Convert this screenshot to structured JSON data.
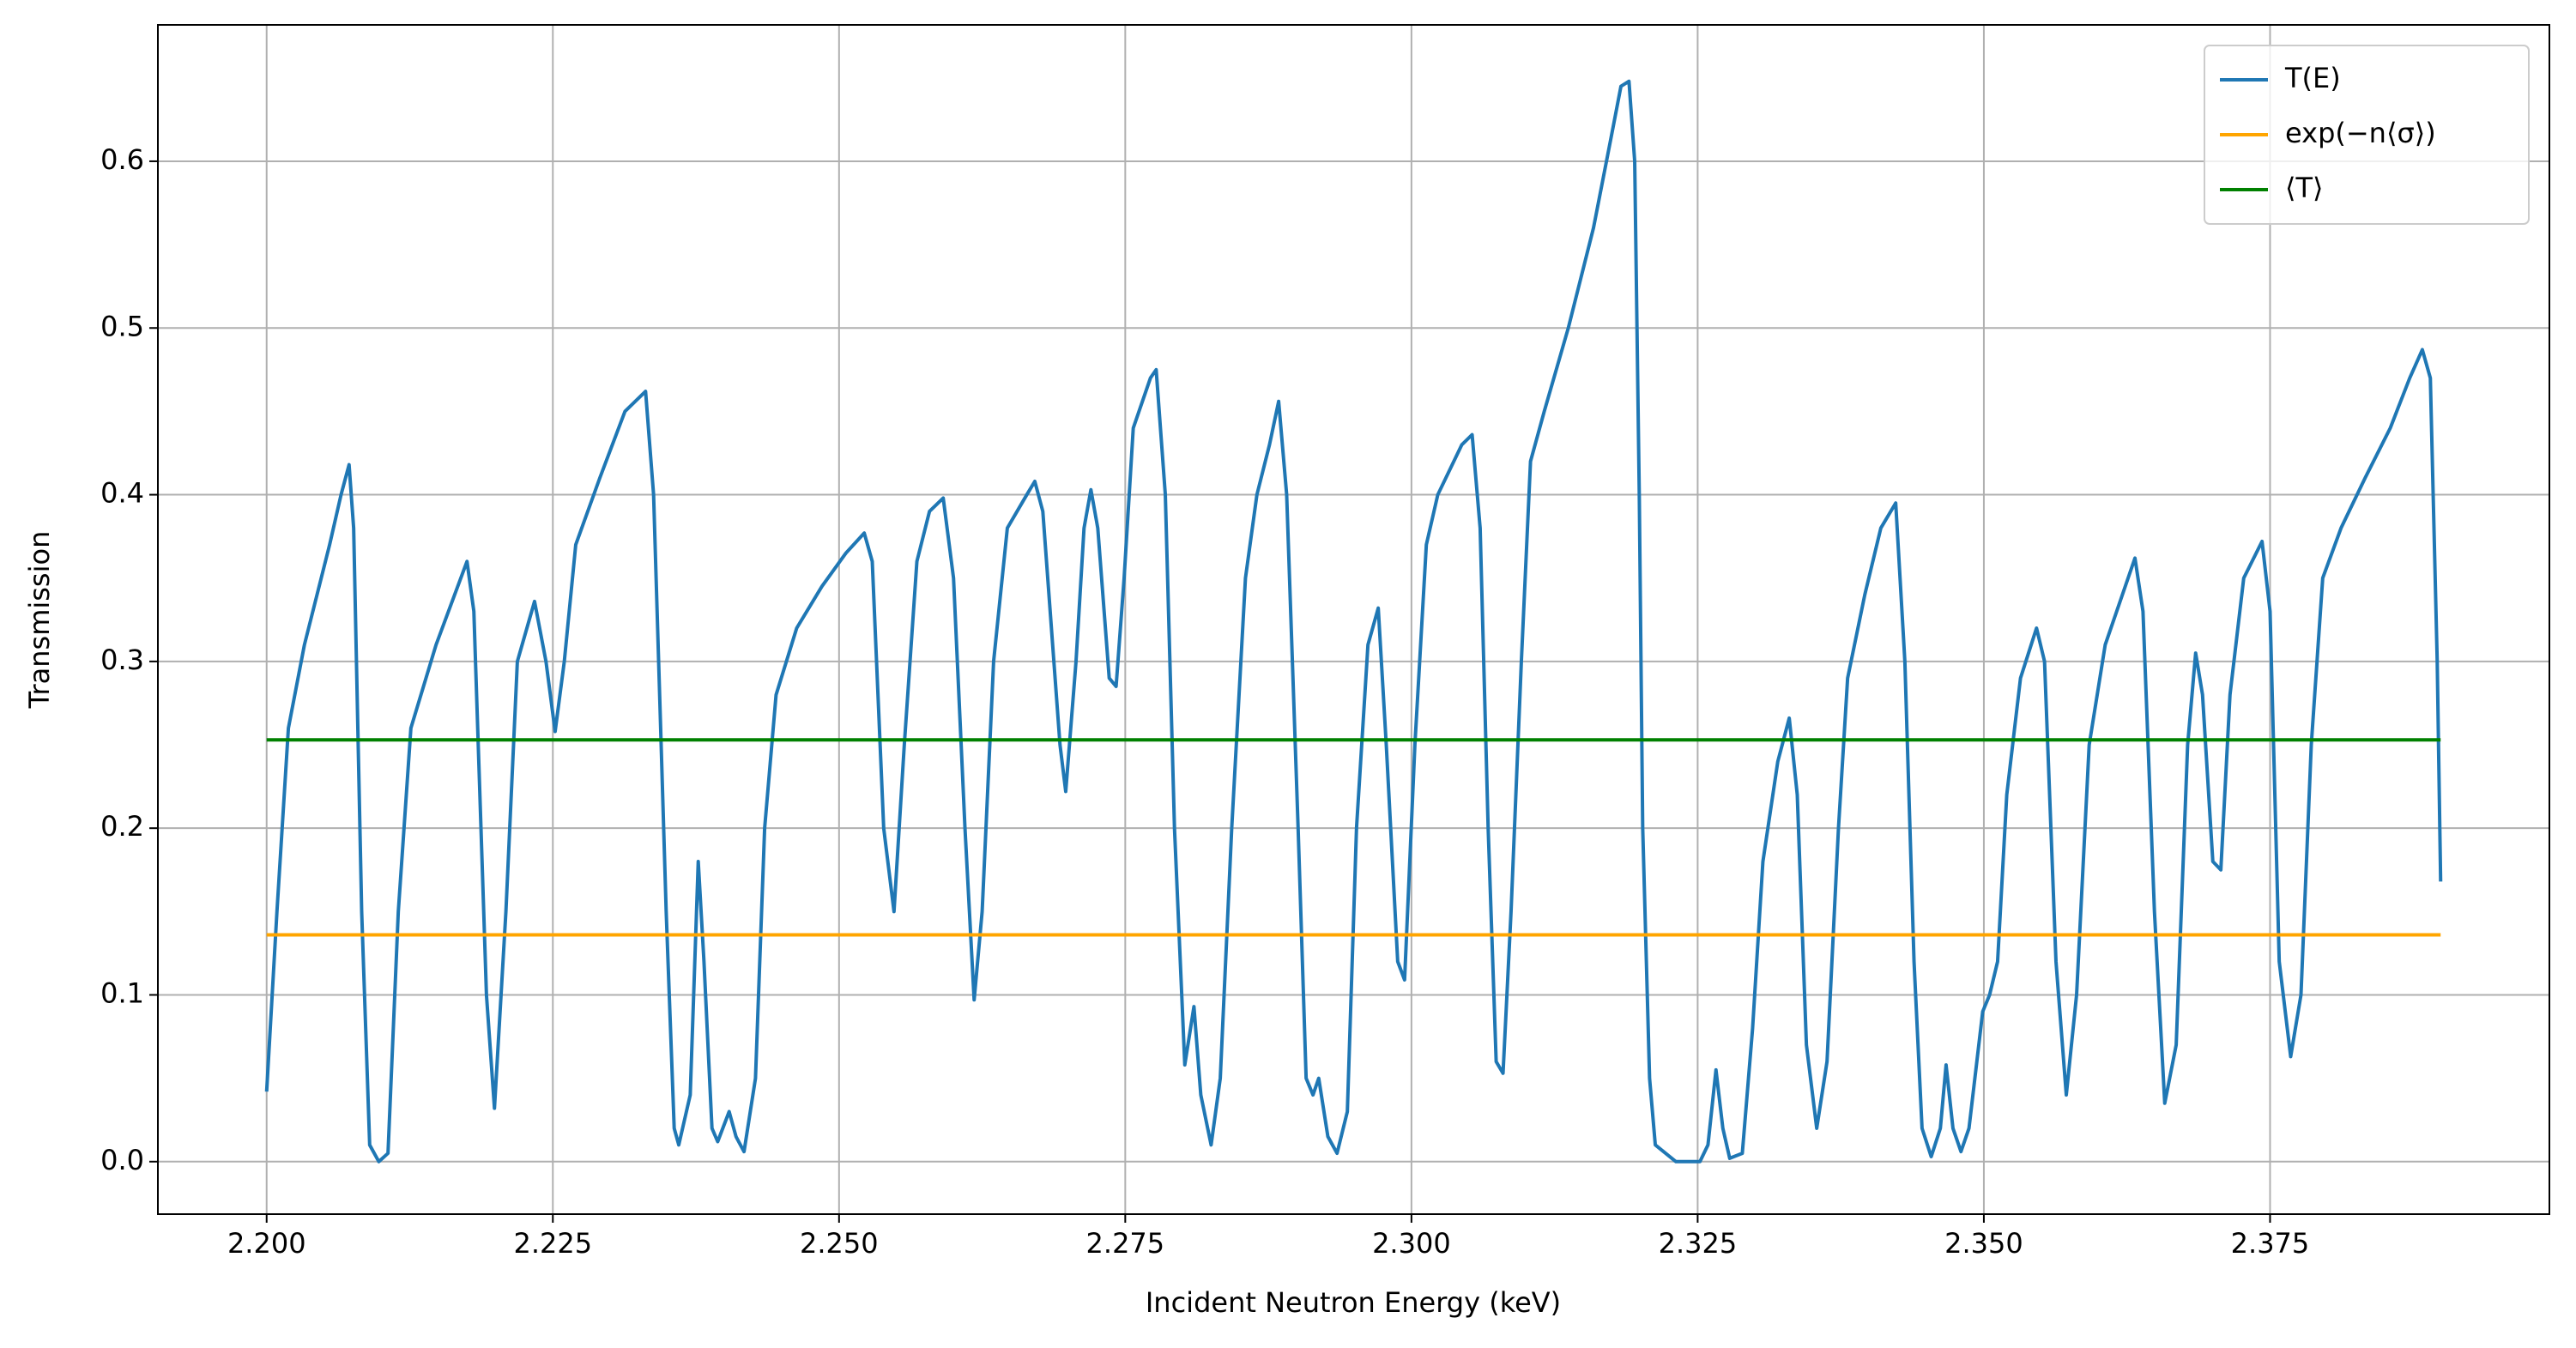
{
  "chart_data": {
    "type": "line",
    "xlabel": "Incident Neutron Energy (keV)",
    "ylabel": "Transmission",
    "xlim": [
      2.1905,
      2.3994
    ],
    "ylim": [
      -0.0315,
      0.6818
    ],
    "xticks": [
      {
        "value": 2.2,
        "label": "2.200"
      },
      {
        "value": 2.225,
        "label": "2.225"
      },
      {
        "value": 2.25,
        "label": "2.250"
      },
      {
        "value": 2.275,
        "label": "2.275"
      },
      {
        "value": 2.3,
        "label": "2.300"
      },
      {
        "value": 2.325,
        "label": "2.325"
      },
      {
        "value": 2.35,
        "label": "2.350"
      },
      {
        "value": 2.375,
        "label": "2.375"
      }
    ],
    "yticks": [
      {
        "value": 0,
        "label": "0.0"
      },
      0.1,
      0.2,
      0.3,
      0.4,
      0.5,
      0.6
    ],
    "grid": true,
    "legend": "upper right",
    "series": [
      {
        "name": "T(E)",
        "color": "#1f77b4",
        "x": [
          2.2,
          2.2009,
          2.2019,
          2.2033,
          2.2055,
          2.2065,
          2.2072,
          2.2076,
          2.2083,
          2.209,
          2.2098,
          2.2106,
          2.2115,
          2.2126,
          2.2148,
          2.2175,
          2.2181,
          2.2192,
          2.2199,
          2.2209,
          2.2219,
          2.2234,
          2.2244,
          2.2252,
          2.226,
          2.227,
          2.2291,
          2.2313,
          2.2331,
          2.2338,
          2.2349,
          2.2356,
          2.236,
          2.237,
          2.2377,
          2.2382,
          2.2389,
          2.2394,
          2.2404,
          2.241,
          2.2417,
          2.2427,
          2.2435,
          2.2445,
          2.2463,
          2.2485,
          2.2506,
          2.2522,
          2.2529,
          2.2539,
          2.2548,
          2.2557,
          2.2568,
          2.2579,
          2.2591,
          2.26,
          2.261,
          2.2618,
          2.2625,
          2.2635,
          2.2647,
          2.2664,
          2.2671,
          2.2678,
          2.2693,
          2.2698,
          2.2707,
          2.2714,
          2.272,
          2.2726,
          2.2736,
          2.2742,
          2.2749,
          2.2757,
          2.2772,
          2.2777,
          2.2785,
          2.2793,
          2.2802,
          2.281,
          2.2816,
          2.2825,
          2.2833,
          2.2843,
          2.2855,
          2.2865,
          2.2876,
          2.2884,
          2.2891,
          2.2901,
          2.2908,
          2.2914,
          2.2919,
          2.2927,
          2.2935,
          2.2944,
          2.2952,
          2.2962,
          2.2971,
          2.2978,
          2.2988,
          2.2994,
          2.3003,
          2.3013,
          2.3023,
          2.3044,
          2.3053,
          2.306,
          2.3067,
          2.3074,
          2.308,
          2.3087,
          2.3096,
          2.3104,
          2.3116,
          2.3137,
          2.3159,
          2.3176,
          2.3183,
          2.319,
          2.3195,
          2.3199,
          2.3202,
          2.3208,
          2.3213,
          2.3231,
          2.3252,
          2.3259,
          2.3266,
          2.3272,
          2.3278,
          2.3289,
          2.3298,
          2.3307,
          2.332,
          2.333,
          2.3337,
          2.3345,
          2.3354,
          2.3363,
          2.3373,
          2.3381,
          2.3396,
          2.341,
          2.3423,
          2.3431,
          2.3439,
          2.3446,
          2.3454,
          2.3462,
          2.3467,
          2.3473,
          2.348,
          2.3487,
          2.3499,
          2.3505,
          2.3512,
          2.352,
          2.3532,
          2.3546,
          2.3553,
          2.3563,
          2.3572,
          2.3581,
          2.3592,
          2.3606,
          2.3621,
          2.3632,
          2.3639,
          2.3649,
          2.3658,
          2.3668,
          2.3678,
          2.3685,
          2.3691,
          2.37,
          2.3707,
          2.3715,
          2.3727,
          2.3743,
          2.375,
          2.3758,
          2.3768,
          2.3777,
          2.3786,
          2.3796,
          2.3812,
          2.3833,
          2.3855,
          2.3872,
          2.3883,
          2.389,
          2.3896,
          2.3899
        ],
        "values": [
          0.042,
          0.15,
          0.26,
          0.31,
          0.37,
          0.4,
          0.418,
          0.38,
          0.15,
          0.01,
          0.0,
          0.005,
          0.15,
          0.26,
          0.31,
          0.36,
          0.33,
          0.1,
          0.032,
          0.15,
          0.3,
          0.336,
          0.3,
          0.258,
          0.3,
          0.37,
          0.41,
          0.45,
          0.462,
          0.4,
          0.15,
          0.02,
          0.01,
          0.04,
          0.18,
          0.12,
          0.02,
          0.012,
          0.03,
          0.015,
          0.006,
          0.05,
          0.2,
          0.28,
          0.32,
          0.345,
          0.365,
          0.377,
          0.36,
          0.2,
          0.15,
          0.25,
          0.36,
          0.39,
          0.398,
          0.35,
          0.2,
          0.097,
          0.15,
          0.3,
          0.38,
          0.4,
          0.408,
          0.39,
          0.25,
          0.222,
          0.3,
          0.38,
          0.403,
          0.38,
          0.29,
          0.285,
          0.35,
          0.44,
          0.47,
          0.475,
          0.4,
          0.2,
          0.058,
          0.093,
          0.04,
          0.01,
          0.05,
          0.2,
          0.35,
          0.4,
          0.43,
          0.456,
          0.4,
          0.2,
          0.05,
          0.04,
          0.05,
          0.015,
          0.005,
          0.03,
          0.2,
          0.31,
          0.332,
          0.25,
          0.12,
          0.109,
          0.25,
          0.37,
          0.4,
          0.43,
          0.436,
          0.38,
          0.2,
          0.06,
          0.053,
          0.15,
          0.3,
          0.42,
          0.45,
          0.5,
          0.56,
          0.62,
          0.645,
          0.648,
          0.6,
          0.4,
          0.2,
          0.05,
          0.01,
          0.0,
          0.0,
          0.01,
          0.055,
          0.02,
          0.002,
          0.005,
          0.08,
          0.18,
          0.24,
          0.266,
          0.22,
          0.07,
          0.02,
          0.06,
          0.2,
          0.29,
          0.34,
          0.38,
          0.395,
          0.3,
          0.12,
          0.02,
          0.003,
          0.02,
          0.058,
          0.02,
          0.006,
          0.02,
          0.09,
          0.1,
          0.12,
          0.22,
          0.29,
          0.32,
          0.3,
          0.12,
          0.04,
          0.1,
          0.25,
          0.31,
          0.34,
          0.362,
          0.33,
          0.15,
          0.035,
          0.07,
          0.25,
          0.305,
          0.28,
          0.18,
          0.175,
          0.28,
          0.35,
          0.372,
          0.33,
          0.12,
          0.063,
          0.1,
          0.25,
          0.35,
          0.38,
          0.41,
          0.44,
          0.47,
          0.487,
          0.47,
          0.3,
          0.168
        ]
      },
      {
        "name": "exp(−n⟨σ⟩)",
        "color": "#ffa500",
        "x": [
          2.2,
          2.3899
        ],
        "values": [
          0.136,
          0.136
        ]
      },
      {
        "name": "⟨T⟩",
        "color": "#008000",
        "x": [
          2.2,
          2.3899
        ],
        "values": [
          0.253,
          0.253
        ]
      }
    ]
  }
}
